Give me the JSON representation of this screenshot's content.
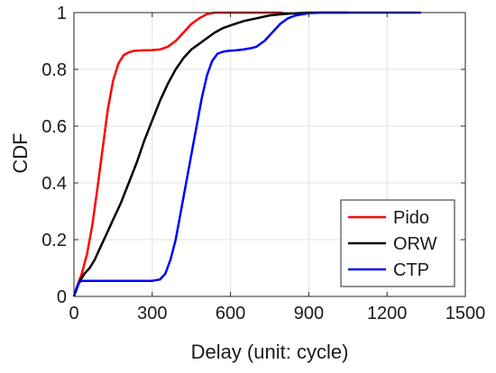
{
  "chart_data": {
    "type": "line",
    "title": "",
    "xlabel": "Delay (unit: cycle)",
    "ylabel": "CDF",
    "xlim": [
      0,
      1500
    ],
    "ylim": [
      0,
      1
    ],
    "x_ticks": [
      "0",
      "300",
      "600",
      "900",
      "1200",
      "1500"
    ],
    "y_ticks": [
      "0",
      "0.2",
      "0.4",
      "0.6",
      "0.8",
      "1"
    ],
    "grid": true,
    "legend_position": "bottom-right",
    "series": [
      {
        "name": "Pido",
        "color": "#ff0000",
        "x": [
          0,
          10,
          30,
          50,
          70,
          90,
          110,
          130,
          150,
          170,
          190,
          210,
          230,
          260,
          300,
          330,
          360,
          390,
          420,
          450,
          480,
          510,
          540,
          570,
          600,
          700,
          800
        ],
        "y": [
          0,
          0.03,
          0.08,
          0.15,
          0.25,
          0.38,
          0.52,
          0.66,
          0.76,
          0.82,
          0.85,
          0.86,
          0.865,
          0.867,
          0.868,
          0.87,
          0.88,
          0.9,
          0.93,
          0.96,
          0.98,
          0.995,
          1,
          1,
          1,
          1,
          1
        ]
      },
      {
        "name": "ORW",
        "color": "#000000",
        "x": [
          0,
          20,
          40,
          60,
          80,
          100,
          120,
          150,
          180,
          210,
          240,
          270,
          300,
          330,
          360,
          390,
          420,
          450,
          480,
          510,
          540,
          570,
          600,
          650,
          700,
          750,
          800,
          850,
          900,
          1000,
          1050
        ],
        "y": [
          0,
          0.05,
          0.08,
          0.1,
          0.13,
          0.17,
          0.21,
          0.27,
          0.33,
          0.4,
          0.47,
          0.55,
          0.62,
          0.69,
          0.75,
          0.8,
          0.84,
          0.87,
          0.89,
          0.91,
          0.93,
          0.945,
          0.955,
          0.97,
          0.98,
          0.99,
          0.995,
          0.998,
          1,
          1,
          1
        ]
      },
      {
        "name": "CTP",
        "color": "#0000ff",
        "x": [
          0,
          10,
          20,
          30,
          100,
          200,
          300,
          330,
          350,
          370,
          390,
          410,
          430,
          450,
          470,
          490,
          510,
          530,
          550,
          570,
          590,
          620,
          650,
          680,
          700,
          730,
          760,
          790,
          820,
          850,
          880,
          900,
          950,
          1000,
          1100,
          1200,
          1300,
          1330
        ],
        "y": [
          0,
          0.03,
          0.05,
          0.055,
          0.055,
          0.055,
          0.055,
          0.06,
          0.08,
          0.13,
          0.2,
          0.3,
          0.4,
          0.5,
          0.6,
          0.7,
          0.78,
          0.83,
          0.855,
          0.862,
          0.865,
          0.867,
          0.87,
          0.875,
          0.88,
          0.9,
          0.93,
          0.96,
          0.98,
          0.99,
          0.995,
          0.998,
          1,
          1,
          1,
          1,
          1,
          1
        ]
      }
    ]
  }
}
